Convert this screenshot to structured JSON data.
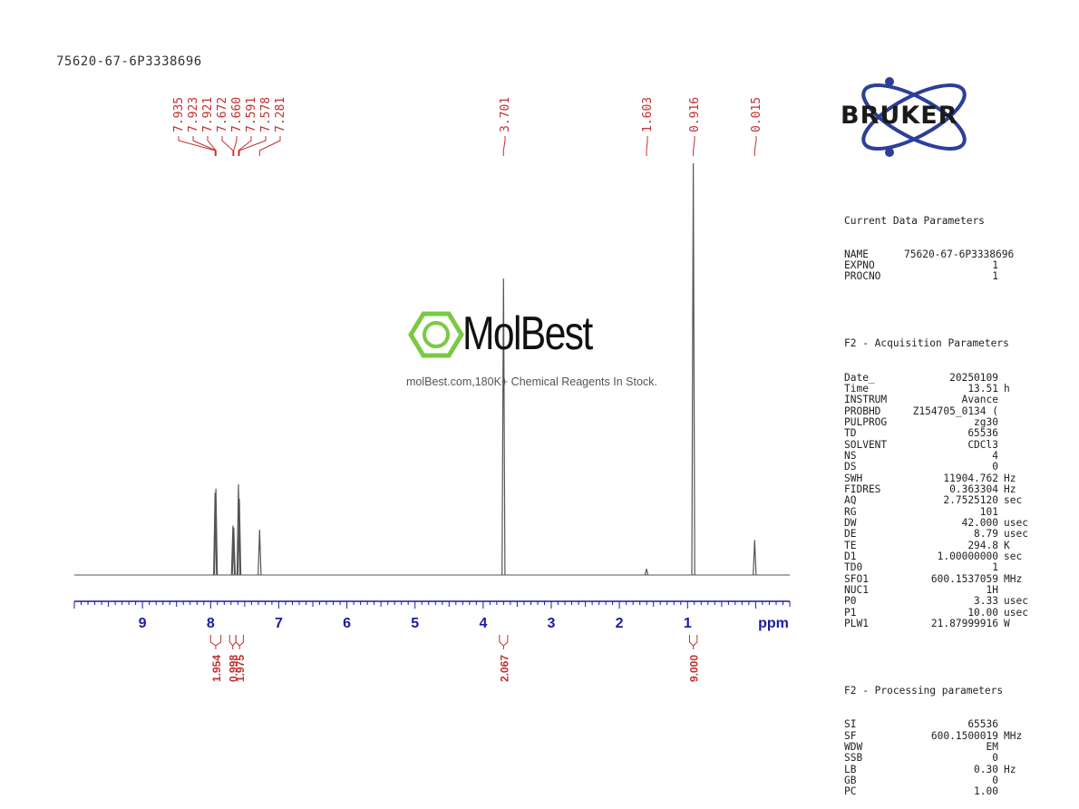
{
  "sample_title": "75620-67-6P3338696",
  "brand": {
    "name": "BRUKER",
    "accent": "#2b3f9a"
  },
  "watermark": {
    "name": "MolBest",
    "tagline": "molBest.com,180K+ Chemical Reagents In Stock.",
    "logo_color": "#7ac943"
  },
  "chart_data": {
    "type": "line",
    "xlabel": "ppm",
    "xlim": [
      10.0,
      -0.5
    ],
    "x_ticks": [
      9,
      8,
      7,
      6,
      5,
      4,
      3,
      2,
      1
    ],
    "x_reversed": true,
    "peak_labels": [
      "7.935",
      "7.923",
      "7.921",
      "7.672",
      "7.660",
      "7.591",
      "7.578",
      "7.281",
      "3.701",
      "1.603",
      "0.916",
      "0.015"
    ],
    "peaks": [
      {
        "ppm": 7.935,
        "height": 0.2
      },
      {
        "ppm": 7.923,
        "height": 0.21
      },
      {
        "ppm": 7.672,
        "height": 0.12
      },
      {
        "ppm": 7.66,
        "height": 0.115
      },
      {
        "ppm": 7.591,
        "height": 0.22
      },
      {
        "ppm": 7.578,
        "height": 0.185
      },
      {
        "ppm": 7.281,
        "height": 0.11
      },
      {
        "ppm": 3.701,
        "height": 0.72
      },
      {
        "ppm": 1.603,
        "height": 0.015
      },
      {
        "ppm": 0.916,
        "height": 1.0
      },
      {
        "ppm": 0.015,
        "height": 0.085
      }
    ],
    "integrals": [
      {
        "from": 8.0,
        "to": 7.85,
        "value": "1.954"
      },
      {
        "from": 7.72,
        "to": 7.63,
        "value": "0.998"
      },
      {
        "from": 7.63,
        "to": 7.52,
        "value": "1.975"
      },
      {
        "from": 3.76,
        "to": 3.64,
        "value": "2.067"
      },
      {
        "from": 0.97,
        "to": 0.86,
        "value": "9.000"
      }
    ],
    "colors": {
      "trace": "#555555",
      "axis": "#1a1aa8",
      "annotation": "#c03030"
    }
  },
  "parameters": {
    "current": {
      "title": "Current Data Parameters",
      "rows": [
        {
          "name": "NAME",
          "value": "75620-67-6P3338696",
          "unit": ""
        },
        {
          "name": "EXPNO",
          "value": "1",
          "unit": ""
        },
        {
          "name": "PROCNO",
          "value": "1",
          "unit": ""
        }
      ]
    },
    "acquisition": {
      "title": "F2 - Acquisition Parameters",
      "rows": [
        {
          "name": "Date_",
          "value": "20250109",
          "unit": ""
        },
        {
          "name": "Time",
          "value": "13.51",
          "unit": "h"
        },
        {
          "name": "INSTRUM",
          "value": "Avance",
          "unit": ""
        },
        {
          "name": "PROBHD",
          "value": "Z154705_0134 (",
          "unit": ""
        },
        {
          "name": "PULPROG",
          "value": "zg30",
          "unit": ""
        },
        {
          "name": "TD",
          "value": "65536",
          "unit": ""
        },
        {
          "name": "SOLVENT",
          "value": "CDCl3",
          "unit": ""
        },
        {
          "name": "NS",
          "value": "4",
          "unit": ""
        },
        {
          "name": "DS",
          "value": "0",
          "unit": ""
        },
        {
          "name": "SWH",
          "value": "11904.762",
          "unit": "Hz"
        },
        {
          "name": "FIDRES",
          "value": "0.363304",
          "unit": "Hz"
        },
        {
          "name": "AQ",
          "value": "2.7525120",
          "unit": "sec"
        },
        {
          "name": "RG",
          "value": "101",
          "unit": ""
        },
        {
          "name": "DW",
          "value": "42.000",
          "unit": "usec"
        },
        {
          "name": "DE",
          "value": "8.79",
          "unit": "usec"
        },
        {
          "name": "TE",
          "value": "294.8",
          "unit": "K"
        },
        {
          "name": "D1",
          "value": "1.00000000",
          "unit": "sec"
        },
        {
          "name": "TD0",
          "value": "1",
          "unit": ""
        },
        {
          "name": "SFO1",
          "value": "600.1537059",
          "unit": "MHz"
        },
        {
          "name": "NUC1",
          "value": "1H",
          "unit": ""
        },
        {
          "name": "P0",
          "value": "3.33",
          "unit": "usec"
        },
        {
          "name": "P1",
          "value": "10.00",
          "unit": "usec"
        },
        {
          "name": "PLW1",
          "value": "21.87999916",
          "unit": "W"
        }
      ]
    },
    "processing": {
      "title": "F2 - Processing parameters",
      "rows": [
        {
          "name": "SI",
          "value": "65536",
          "unit": ""
        },
        {
          "name": "SF",
          "value": "600.1500019",
          "unit": "MHz"
        },
        {
          "name": "WDW",
          "value": "EM",
          "unit": ""
        },
        {
          "name": "SSB",
          "value": "0",
          "unit": ""
        },
        {
          "name": "LB",
          "value": "0.30",
          "unit": "Hz"
        },
        {
          "name": "GB",
          "value": "0",
          "unit": ""
        },
        {
          "name": "PC",
          "value": "1.00",
          "unit": ""
        }
      ]
    }
  }
}
